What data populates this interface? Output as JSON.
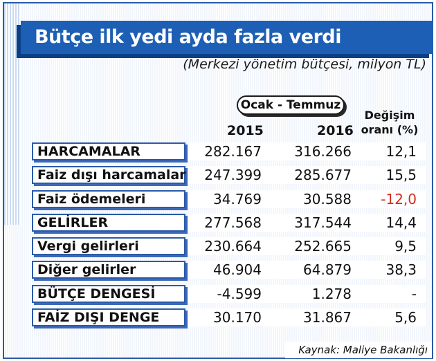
{
  "title": "Bütçe ilk yedi ayda fazla verdi",
  "subtitle": "(Merkezi yönetim bütçesi, milyon TL)",
  "period": "Ocak - Temmuz",
  "columns": {
    "year1": "2015",
    "year2": "2016",
    "change_line1": "Değişim",
    "change_line2": "oranı (%)"
  },
  "negative_color": "#d42a1e",
  "rows": [
    {
      "label": "HARCAMALAR",
      "v2015": "282.167",
      "v2016": "316.266",
      "change": "12,1"
    },
    {
      "label": "Faiz dışı harcamalar",
      "v2015": "247.399",
      "v2016": "285.677",
      "change": "15,5"
    },
    {
      "label": "Faiz ödemeleri",
      "v2015": "34.769",
      "v2016": "30.588",
      "change": "-12,0"
    },
    {
      "label": "GELİRLER",
      "v2015": "277.568",
      "v2016": "317.544",
      "change": "14,4"
    },
    {
      "label": "Vergi gelirleri",
      "v2015": "230.664",
      "v2016": "252.665",
      "change": "9,5"
    },
    {
      "label": "Diğer gelirler",
      "v2015": "46.904",
      "v2016": "64.879",
      "change": "38,3"
    },
    {
      "label": "BÜTÇE DENGESİ",
      "v2015": "-4.599",
      "v2016": "1.278",
      "change": "-"
    },
    {
      "label": "FAİZ DIŞI DENGE",
      "v2015": "30.170",
      "v2016": "31.867",
      "change": "5,6"
    }
  ],
  "source": "Kaynak: Maliye Bakanlığı"
}
